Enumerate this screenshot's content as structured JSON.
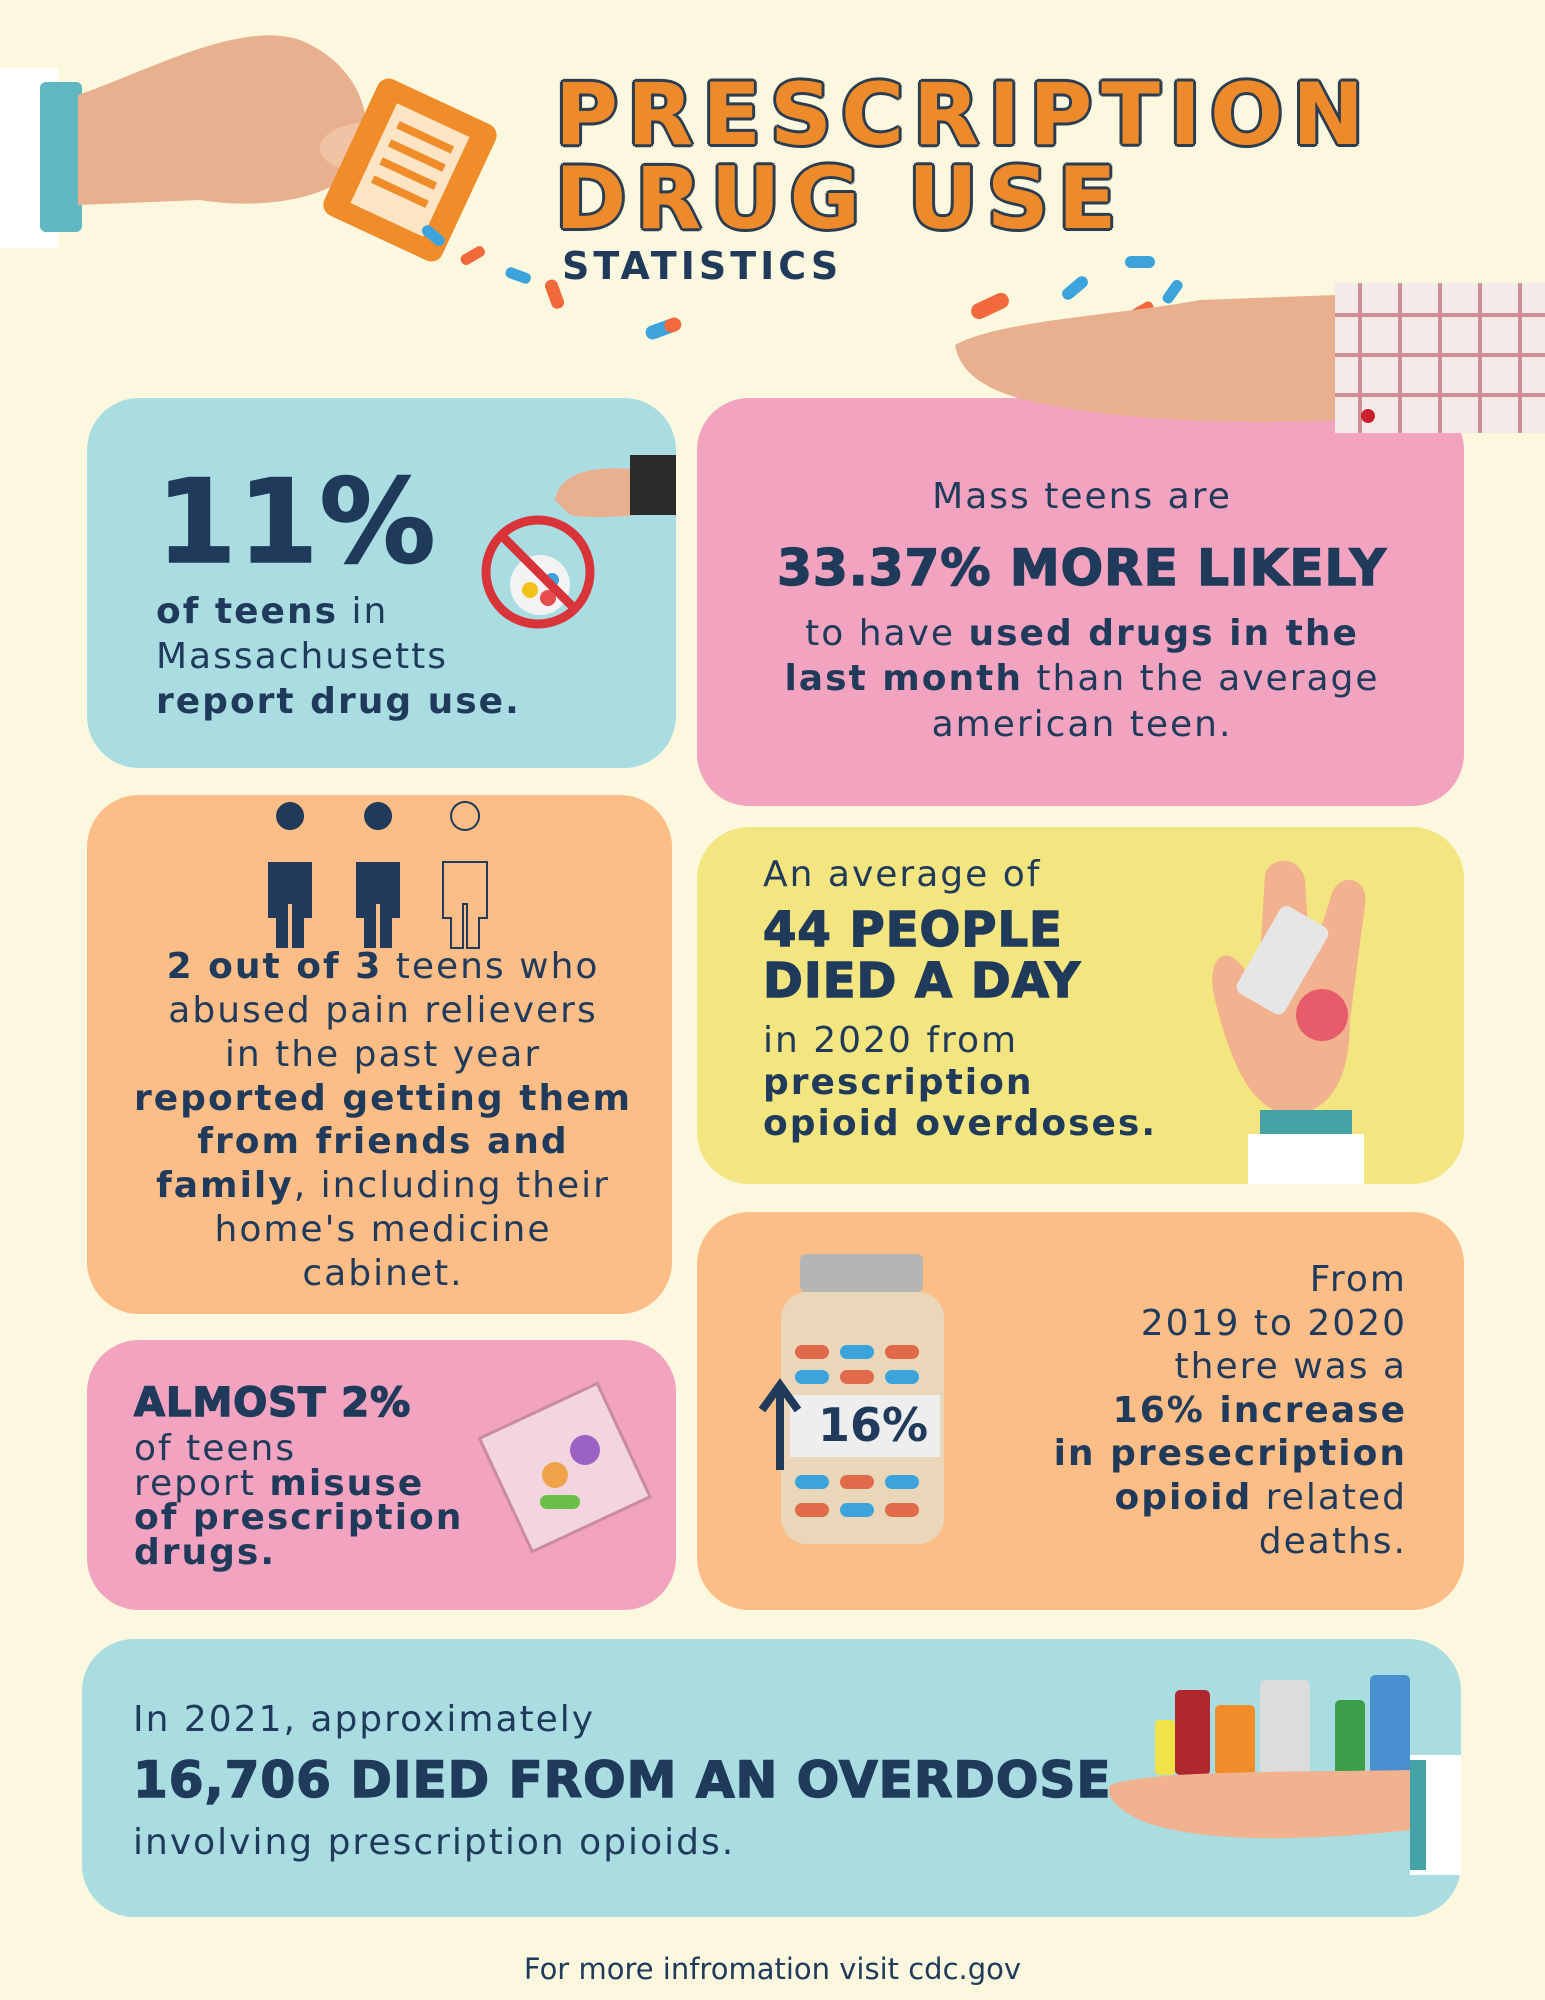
{
  "header": {
    "title_line1": "PRESCRIPTION",
    "title_line2": "DRUG USE",
    "subtitle": "STATISTICS"
  },
  "cards": [
    {
      "color": "#a9dde1",
      "lines": [
        [
          {
            "text": "11%",
            "display": true
          }
        ],
        [
          {
            "text": "of teens",
            "bold": true
          },
          {
            "text": " in"
          }
        ],
        [
          {
            "text": "Massachusetts"
          }
        ],
        [
          {
            "text": "report drug use.",
            "bold": true
          }
        ]
      ]
    },
    {
      "color": "#f1a3bf",
      "lines": [
        [
          {
            "text": "Mass teens are"
          }
        ],
        [
          {
            "text": "33.37% MORE LIKELY",
            "display": true
          }
        ],
        [
          {
            "text": "to have "
          },
          {
            "text": "used drugs in the",
            "bold": true
          }
        ],
        [
          {
            "text": "last month",
            "bold": true
          },
          {
            "text": " than the average"
          }
        ],
        [
          {
            "text": "american teen."
          }
        ]
      ]
    },
    {
      "color": "#fdbd86",
      "lines": [
        [
          {
            "text": "2 out of 3",
            "bold": true
          },
          {
            "text": " teens who"
          }
        ],
        [
          {
            "text": "abused pain relievers"
          }
        ],
        [
          {
            "text": "in the past year"
          }
        ],
        [
          {
            "text": "reported getting them",
            "bold": true
          }
        ],
        [
          {
            "text": "from friends and",
            "bold": true
          }
        ],
        [
          {
            "text": "family",
            "bold": true
          },
          {
            "text": ", including their"
          }
        ],
        [
          {
            "text": "home's medicine"
          }
        ],
        [
          {
            "text": "cabinet."
          }
        ]
      ]
    },
    {
      "color": "#f3e57f",
      "lines": [
        [
          {
            "text": "An average of"
          }
        ],
        [
          {
            "text": "44 PEOPLE",
            "display": true
          }
        ],
        [
          {
            "text": "DIED A DAY",
            "display": true
          }
        ],
        [
          {
            "text": "in 2020 from"
          }
        ],
        [
          {
            "text": "prescription",
            "bold": true
          }
        ],
        [
          {
            "text": "opioid overdoses.",
            "bold": true
          }
        ]
      ]
    },
    {
      "color": "#fdbd86",
      "bottle_label": "16%",
      "lines": [
        [
          {
            "text": "From"
          }
        ],
        [
          {
            "text": "2019 to 2020"
          }
        ],
        [
          {
            "text": "there was a"
          }
        ],
        [
          {
            "text": "16% increase",
            "bold": true
          }
        ],
        [
          {
            "text": "in presecription",
            "bold": true
          }
        ],
        [
          {
            "text": "opioid",
            "bold": true
          },
          {
            "text": " related"
          }
        ],
        [
          {
            "text": "deaths."
          }
        ]
      ]
    },
    {
      "color": "#f1a3bf",
      "lines": [
        [
          {
            "text": "ALMOST 2%",
            "display": true
          }
        ],
        [
          {
            "text": "of teens"
          }
        ],
        [
          {
            "text": "report "
          },
          {
            "text": "misuse",
            "bold": true
          }
        ],
        [
          {
            "text": "of prescription",
            "bold": true
          }
        ],
        [
          {
            "text": "drugs.",
            "bold": true
          }
        ]
      ]
    },
    {
      "color": "#a9dde1",
      "lines": [
        [
          {
            "text": "In 2021, approximately"
          }
        ],
        [
          {
            "text": "16,706 DIED FROM AN OVERDOSE",
            "display": true
          }
        ],
        [
          {
            "text": "involving prescription opioids."
          }
        ]
      ]
    }
  ],
  "footer": "For more infromation visit cdc.gov"
}
